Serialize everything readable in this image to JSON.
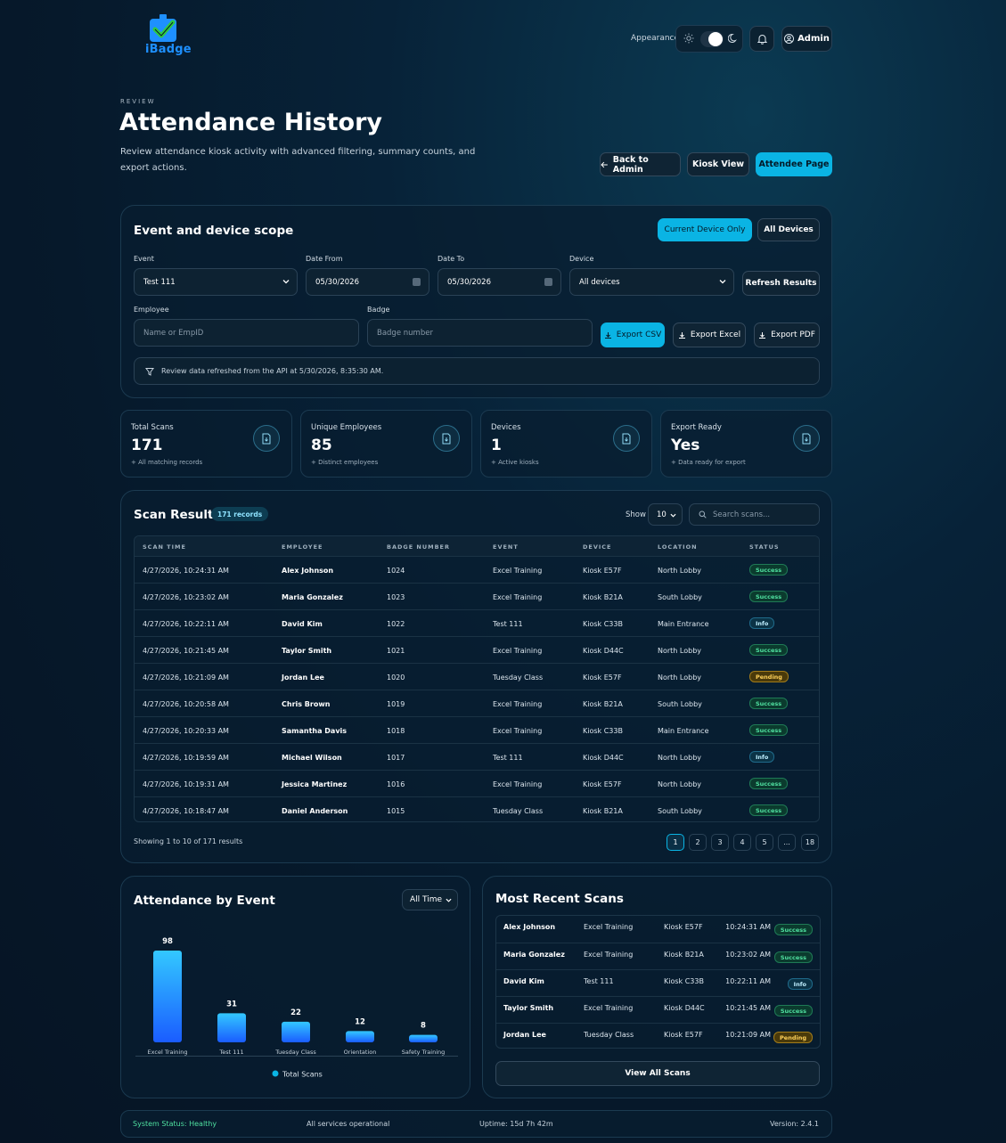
{
  "brand": {
    "name": "iBadge"
  },
  "header": {
    "appearance_label": "Appearance",
    "admin_label": "Admin"
  },
  "page": {
    "eyebrow": "REVIEW",
    "title": "Attendance History",
    "subtitle": "Review attendance kiosk activity with advanced filtering, summary counts, and export actions."
  },
  "actions": {
    "back": "Back to Admin",
    "kiosk": "Kiosk View",
    "attendee": "Attendee Page"
  },
  "scope": {
    "title": "Event and device scope",
    "current_device": "Current Device Only",
    "all_devices": "All Devices",
    "event_label": "Event",
    "event_value": "Test 111",
    "date_from_label": "Date From",
    "date_from_value": "05/30/2026",
    "date_to_label": "Date To",
    "date_to_value": "05/30/2026",
    "device_label": "Device",
    "device_value": "All devices",
    "refresh": "Refresh Results",
    "employee_label": "Employee",
    "employee_placeholder": "Name or EmpID",
    "badge_label": "Badge",
    "badge_placeholder": "Badge number",
    "export_csv": "Export CSV",
    "export_excel": "Export Excel",
    "export_pdf": "Export PDF",
    "notice": "Review data refreshed from the API at 5/30/2026, 8:35:30 AM."
  },
  "stats": [
    {
      "label": "Total Scans",
      "value": "171",
      "sub": "+ All matching records"
    },
    {
      "label": "Unique Employees",
      "value": "85",
      "sub": "+ Distinct employees"
    },
    {
      "label": "Devices",
      "value": "1",
      "sub": "+ Active kiosks"
    },
    {
      "label": "Export Ready",
      "value": "Yes",
      "sub": "+ Data ready for export"
    }
  ],
  "results": {
    "title": "Scan Results",
    "records": "171 records",
    "show_label": "Show",
    "show_value": "10",
    "search_placeholder": "Search scans...",
    "columns": [
      "SCAN TIME",
      "EMPLOYEE",
      "BADGE NUMBER",
      "EVENT",
      "DEVICE",
      "LOCATION",
      "STATUS"
    ],
    "rows": [
      {
        "time": "4/27/2026, 10:24:31 AM",
        "employee": "Alex Johnson",
        "badge": "1024",
        "event": "Excel Training",
        "device": "Kiosk E57F",
        "location": "North Lobby",
        "status": "Success"
      },
      {
        "time": "4/27/2026, 10:23:02 AM",
        "employee": "Maria Gonzalez",
        "badge": "1023",
        "event": "Excel Training",
        "device": "Kiosk B21A",
        "location": "South Lobby",
        "status": "Success"
      },
      {
        "time": "4/27/2026, 10:22:11 AM",
        "employee": "David Kim",
        "badge": "1022",
        "event": "Test 111",
        "device": "Kiosk C33B",
        "location": "Main Entrance",
        "status": "Info"
      },
      {
        "time": "4/27/2026, 10:21:45 AM",
        "employee": "Taylor Smith",
        "badge": "1021",
        "event": "Excel Training",
        "device": "Kiosk D44C",
        "location": "North Lobby",
        "status": "Success"
      },
      {
        "time": "4/27/2026, 10:21:09 AM",
        "employee": "Jordan Lee",
        "badge": "1020",
        "event": "Tuesday Class",
        "device": "Kiosk E57F",
        "location": "North Lobby",
        "status": "Pending"
      },
      {
        "time": "4/27/2026, 10:20:58 AM",
        "employee": "Chris Brown",
        "badge": "1019",
        "event": "Excel Training",
        "device": "Kiosk B21A",
        "location": "South Lobby",
        "status": "Success"
      },
      {
        "time": "4/27/2026, 10:20:33 AM",
        "employee": "Samantha Davis",
        "badge": "1018",
        "event": "Excel Training",
        "device": "Kiosk C33B",
        "location": "Main Entrance",
        "status": "Success"
      },
      {
        "time": "4/27/2026, 10:19:59 AM",
        "employee": "Michael Wilson",
        "badge": "1017",
        "event": "Test 111",
        "device": "Kiosk D44C",
        "location": "North Lobby",
        "status": "Info"
      },
      {
        "time": "4/27/2026, 10:19:31 AM",
        "employee": "Jessica Martinez",
        "badge": "1016",
        "event": "Excel Training",
        "device": "Kiosk E57F",
        "location": "North Lobby",
        "status": "Success"
      },
      {
        "time": "4/27/2026, 10:18:47 AM",
        "employee": "Daniel Anderson",
        "badge": "1015",
        "event": "Tuesday Class",
        "device": "Kiosk B21A",
        "location": "South Lobby",
        "status": "Success"
      }
    ],
    "showing": "Showing 1 to 10 of 171 results",
    "pages": [
      "1",
      "2",
      "3",
      "4",
      "5",
      "...",
      "18"
    ]
  },
  "chart_data": {
    "type": "bar",
    "title": "Attendance by Event",
    "filter": "All Time",
    "categories": [
      "Excel Training",
      "Test 111",
      "Tuesday Class",
      "Orientation",
      "Safety Training"
    ],
    "series": [
      {
        "name": "Total Scans",
        "values": [
          98,
          31,
          22,
          12,
          8
        ]
      }
    ],
    "ylim": [
      0,
      100
    ],
    "grid": false,
    "legend": "bottom"
  },
  "recent": {
    "title": "Most Recent Scans",
    "rows": [
      {
        "employee": "Alex Johnson",
        "event": "Excel Training",
        "device": "Kiosk E57F",
        "time": "10:24:31 AM",
        "status": "Success"
      },
      {
        "employee": "Maria Gonzalez",
        "event": "Excel Training",
        "device": "Kiosk B21A",
        "time": "10:23:02 AM",
        "status": "Success"
      },
      {
        "employee": "David Kim",
        "event": "Test 111",
        "device": "Kiosk C33B",
        "time": "10:22:11 AM",
        "status": "Info"
      },
      {
        "employee": "Taylor Smith",
        "event": "Excel Training",
        "device": "Kiosk D44C",
        "time": "10:21:45 AM",
        "status": "Success"
      },
      {
        "employee": "Jordan Lee",
        "event": "Tuesday Class",
        "device": "Kiosk E57F",
        "time": "10:21:09 AM",
        "status": "Pending"
      }
    ],
    "view_all": "View All Scans"
  },
  "footer": {
    "status": "System Status: Healthy",
    "services": "All services operational",
    "uptime": "Uptime: 15d 7h 42m",
    "version": "Version: 2.4.1"
  },
  "colors": {
    "accent": "#0ab4e4",
    "success": "#4fe0a0",
    "pending": "#ffd25a",
    "bar_top": "#33c8ff",
    "bar_bottom": "#1a5cff"
  }
}
